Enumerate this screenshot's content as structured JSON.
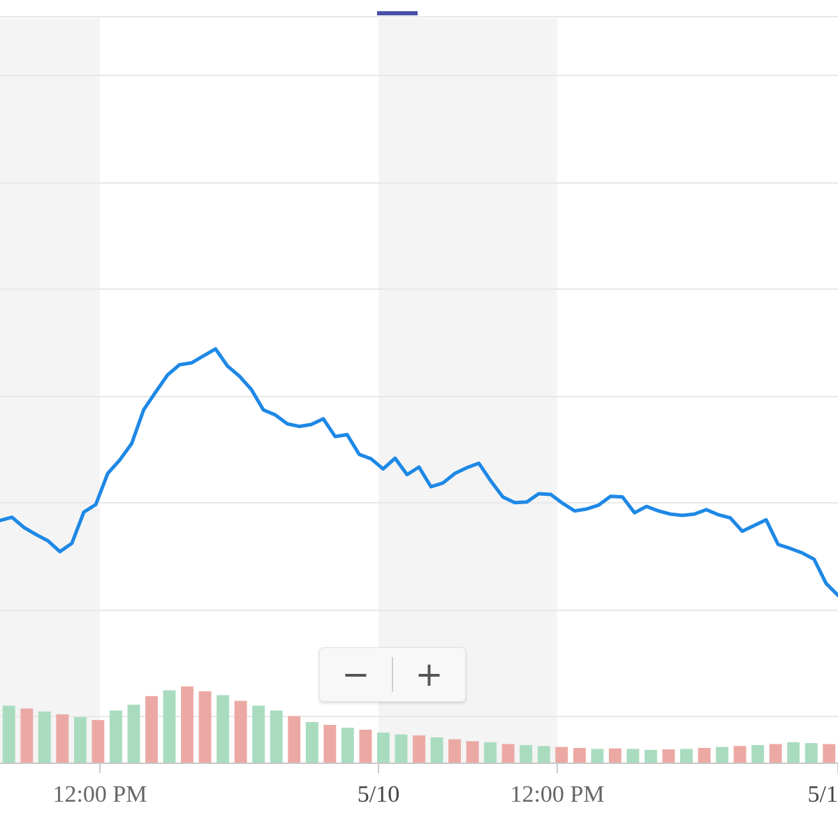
{
  "chart_data": {
    "type": "line",
    "title": "",
    "xlabel": "",
    "ylabel": "",
    "x_tick_labels": [
      "12:00 PM",
      "5/10",
      "12:00 PM",
      "5/1"
    ],
    "grid": true,
    "line_color": "#1e88e5",
    "volume_up_color": "#a9dcbf",
    "volume_down_color": "#eca9a4",
    "shading_color": "#f4f4f4",
    "ylim": [
      0,
      100
    ],
    "series": [
      {
        "values": [
          21.4,
          21.9,
          20.3,
          19.2,
          18.2,
          16.5,
          17.8,
          22.7,
          23.9,
          28.8,
          30.9,
          33.5,
          38.8,
          41.6,
          44.3,
          45.9,
          46.2,
          47.3,
          48.4,
          45.7,
          44.1,
          42.0,
          38.8,
          38.0,
          36.6,
          36.2,
          36.5,
          37.4,
          34.6,
          34.9,
          31.8,
          31.1,
          29.5,
          31.2,
          28.6,
          29.8,
          26.7,
          27.3,
          28.8,
          29.7,
          30.4,
          27.6,
          25.1,
          24.2,
          24.3,
          25.6,
          25.5,
          24.1,
          22.9,
          23.2,
          23.8,
          25.2,
          25.1,
          22.6,
          23.6,
          22.9,
          22.4,
          22.2,
          22.4,
          23.1,
          22.3,
          21.8,
          19.7,
          20.6,
          21.5,
          17.6,
          17.0,
          16.3,
          15.3,
          11.5,
          9.6
        ]
      }
    ],
    "volume": {
      "values": [
        12.0,
        11.4,
        10.8,
        10.2,
        9.6,
        9.0,
        11.0,
        12.2,
        14.0,
        15.2,
        16.0,
        15.0,
        14.2,
        13.0,
        12.0,
        11.0,
        9.8,
        8.6,
        8.0,
        7.4,
        7.0,
        6.4,
        6.0,
        5.8,
        5.4,
        5.0,
        4.6,
        4.4,
        4.0,
        3.8,
        3.6,
        3.4,
        3.2,
        3.0,
        3.1,
        3.0,
        2.8,
        2.9,
        3.0,
        3.2,
        3.4,
        3.6,
        3.8,
        4.0,
        4.4,
        4.2,
        4.0
      ],
      "up": [
        true,
        false,
        true,
        false,
        true,
        false,
        true,
        true,
        false,
        true,
        false,
        false,
        true,
        false,
        true,
        true,
        false,
        true,
        false,
        true,
        false,
        true,
        true,
        false,
        true,
        false,
        false,
        true,
        false,
        true,
        true,
        false,
        false,
        true,
        false,
        true,
        true,
        false,
        true,
        false,
        true,
        false,
        true,
        false,
        true,
        true,
        false
      ]
    }
  },
  "zoom_control": {
    "minus_label": "−",
    "plus_label": "+"
  }
}
